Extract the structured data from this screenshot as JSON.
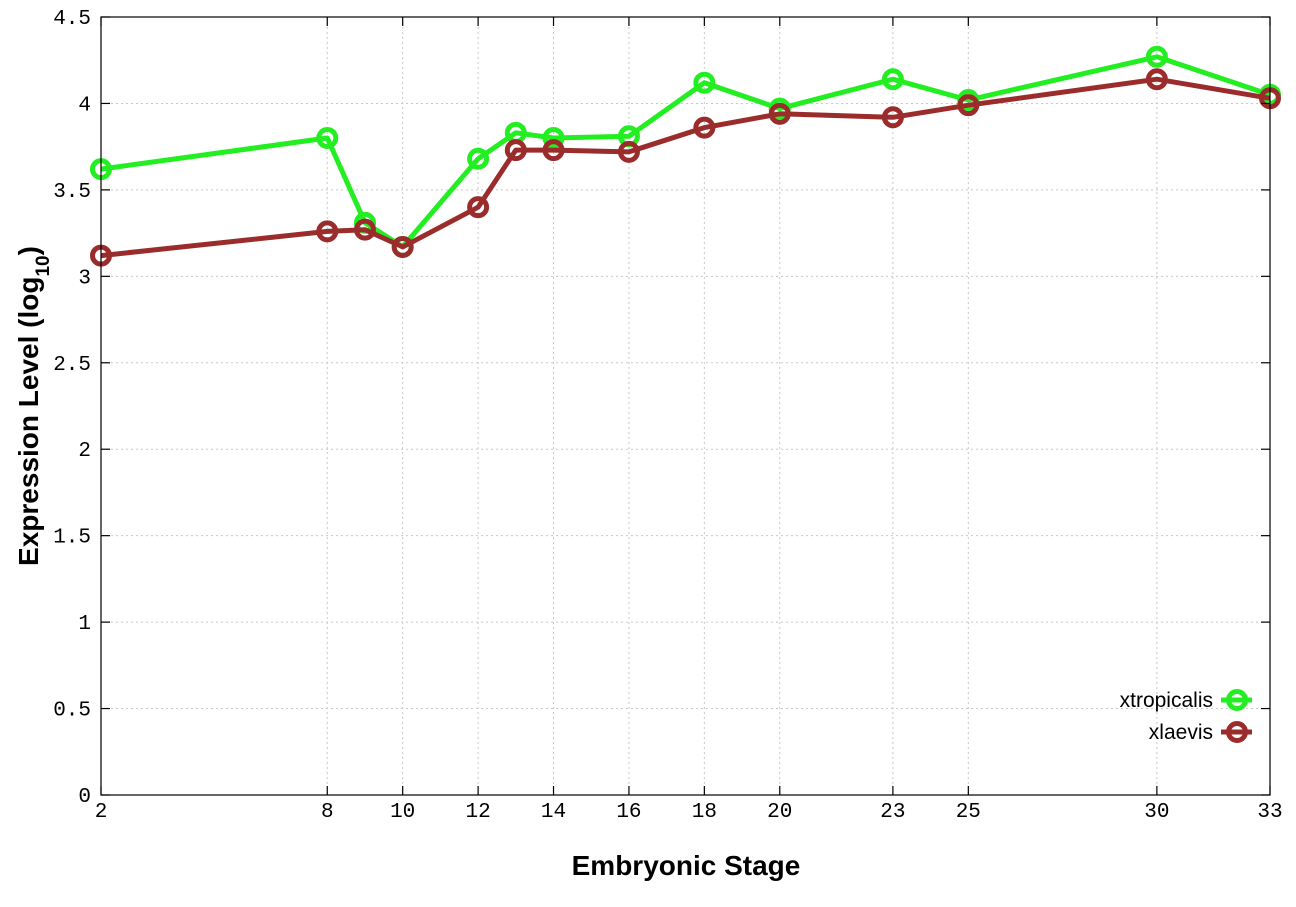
{
  "chart_data": {
    "type": "line",
    "title": "",
    "xlabel": "Embryonic Stage",
    "ylabel_main": "Expression Level (log",
    "ylabel_sub": "10",
    "ylabel_end": ")",
    "xlim": [
      2,
      33
    ],
    "ylim": [
      0,
      4.5
    ],
    "x_ticks": [
      2,
      8,
      10,
      12,
      14,
      16,
      18,
      20,
      23,
      25,
      30,
      33
    ],
    "x_tick_labels": [
      "2",
      "8",
      "10",
      "12",
      "14",
      "16",
      "18",
      "20",
      "23",
      "25",
      "30",
      "33"
    ],
    "y_ticks": [
      0,
      0.5,
      1,
      1.5,
      2,
      2.5,
      3,
      3.5,
      4,
      4.5
    ],
    "y_tick_labels": [
      "0",
      "0.5",
      "1",
      "1.5",
      "2",
      "2.5",
      "3",
      "3.5",
      "4",
      "4.5"
    ],
    "grid": true,
    "legend_position": "bottom-right",
    "series": [
      {
        "name": "xtropicalis",
        "color": "#22ee22",
        "x": [
          2,
          8,
          9,
          10,
          12,
          13,
          14,
          16,
          18,
          20,
          23,
          25,
          30,
          33
        ],
        "y": [
          3.62,
          3.8,
          3.31,
          3.17,
          3.68,
          3.83,
          3.8,
          3.81,
          4.12,
          3.97,
          4.14,
          4.02,
          4.27,
          4.05
        ]
      },
      {
        "name": "xlaevis",
        "color": "#9b2c2c",
        "x": [
          2,
          8,
          9,
          10,
          12,
          13,
          14,
          16,
          18,
          20,
          23,
          25,
          30,
          33
        ],
        "y": [
          3.12,
          3.26,
          3.27,
          3.17,
          3.4,
          3.73,
          3.73,
          3.72,
          3.86,
          3.94,
          3.92,
          3.99,
          4.14,
          4.03
        ]
      }
    ]
  }
}
